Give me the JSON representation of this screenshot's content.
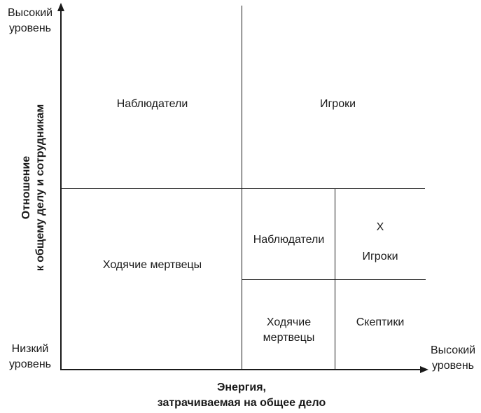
{
  "axes": {
    "y_high": "Высокий уровень",
    "y_low": "Низкий уровень",
    "y_title_line1": "Отношение",
    "y_title_line2": "к общему делу и сотрудникам",
    "x_high": "Высокий уровень",
    "x_title_line1": "Энергия,",
    "x_title_line2": "затрачиваемая на общее дело"
  },
  "quadrants": {
    "top_left": "Наблюдатели",
    "top_right": "Игроки",
    "bottom_left": "Ходячие мертвецы"
  },
  "sub_quadrants": {
    "top_left": "Наблюдатели",
    "top_right_mark": "X",
    "top_right": "Игроки",
    "bottom_left_line1": "Ходячие",
    "bottom_left_line2": "мертвецы",
    "bottom_right": "Скептики"
  }
}
